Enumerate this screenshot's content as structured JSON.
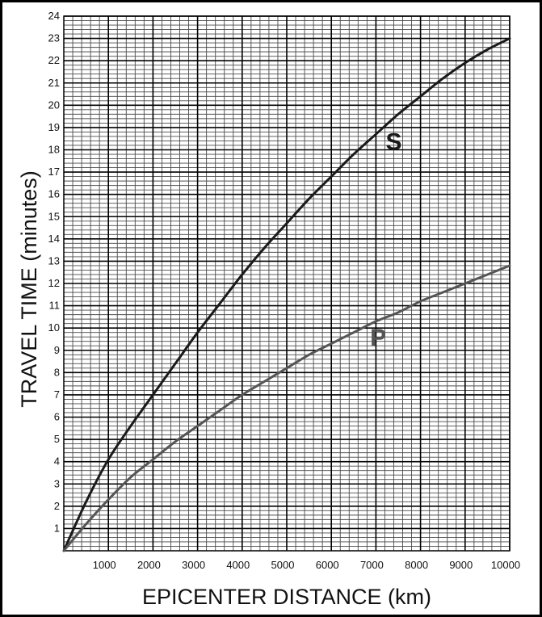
{
  "chart_data": {
    "type": "line",
    "title": "",
    "xlabel": "EPICENTER DISTANCE (km)",
    "ylabel": "TRAVEL TIME (minutes)",
    "xlim": [
      0,
      10000
    ],
    "ylim": [
      0,
      24
    ],
    "xticks": [
      1000,
      2000,
      3000,
      4000,
      5000,
      6000,
      7000,
      8000,
      9000,
      10000
    ],
    "yticks": [
      1,
      2,
      3,
      4,
      5,
      6,
      7,
      8,
      9,
      10,
      11,
      12,
      13,
      14,
      15,
      16,
      17,
      18,
      19,
      20,
      21,
      22,
      23,
      24
    ],
    "x_minor_step": 200,
    "y_minor_step": 0.2,
    "grid": true,
    "series": [
      {
        "name": "S",
        "color": "#1a1a1a",
        "x": [
          0,
          500,
          1000,
          1500,
          2000,
          2500,
          3000,
          3500,
          4000,
          4500,
          5000,
          5500,
          6000,
          6500,
          7000,
          7500,
          8000,
          8500,
          9000,
          9500,
          10000
        ],
        "y": [
          0,
          2.2,
          4.1,
          5.6,
          7.0,
          8.4,
          9.8,
          11.1,
          12.4,
          13.6,
          14.7,
          15.8,
          16.8,
          17.8,
          18.7,
          19.6,
          20.4,
          21.2,
          21.9,
          22.5,
          23.0
        ]
      },
      {
        "name": "P",
        "color": "#555555",
        "x": [
          0,
          500,
          1000,
          1500,
          2000,
          2500,
          3000,
          3500,
          4000,
          4500,
          5000,
          5500,
          6000,
          6500,
          7000,
          7500,
          8000,
          8500,
          9000,
          9500,
          10000
        ],
        "y": [
          0,
          1.2,
          2.3,
          3.3,
          4.1,
          4.9,
          5.6,
          6.3,
          7.0,
          7.6,
          8.2,
          8.8,
          9.3,
          9.8,
          10.3,
          10.7,
          11.2,
          11.6,
          12.0,
          12.4,
          12.8
        ]
      }
    ]
  }
}
